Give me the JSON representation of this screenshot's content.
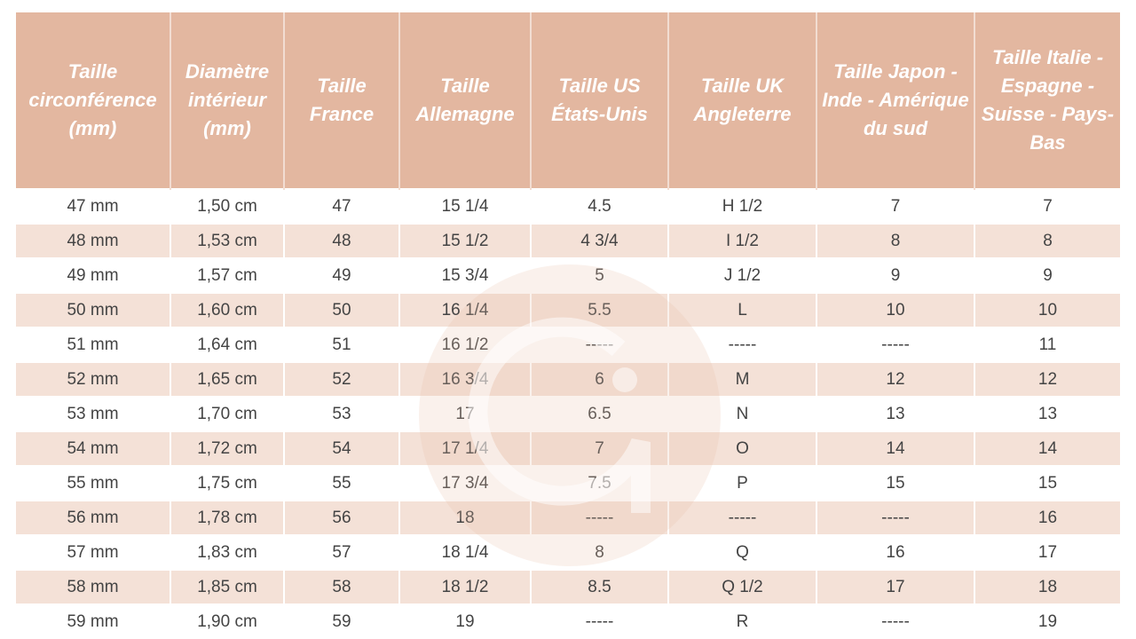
{
  "colors": {
    "header": "#e3b7a0",
    "alt_row": "#f4e1d7"
  },
  "watermark": {
    "icon": "g-logo-watermark",
    "text": "G"
  },
  "headers": [
    "Taille circonférence (mm)",
    "Diamètre intérieur (mm)",
    "Taille France",
    "Taille Allemagne",
    "Taille US États-Unis",
    "Taille UK Angleterre",
    "Taille Japon - Inde - Amérique du sud",
    "Taille Italie - Espagne - Suisse - Pays-Bas"
  ],
  "rows": [
    [
      "47 mm",
      "1,50 cm",
      "47",
      "15 1/4",
      "4.5",
      "H 1/2",
      "7",
      "7"
    ],
    [
      "48 mm",
      "1,53 cm",
      "48",
      "15 1/2",
      "4 3/4",
      "I 1/2",
      "8",
      "8"
    ],
    [
      "49 mm",
      "1,57 cm",
      "49",
      "15 3/4",
      "5",
      "J 1/2",
      "9",
      "9"
    ],
    [
      "50 mm",
      "1,60 cm",
      "50",
      "16 1/4",
      "5.5",
      "L",
      "10",
      "10"
    ],
    [
      "51 mm",
      "1,64 cm",
      "51",
      "16 1/2",
      "-----",
      "-----",
      "-----",
      "11"
    ],
    [
      "52 mm",
      "1,65 cm",
      "52",
      "16 3/4",
      "6",
      "M",
      "12",
      "12"
    ],
    [
      "53 mm",
      "1,70 cm",
      "53",
      "17",
      "6.5",
      "N",
      "13",
      "13"
    ],
    [
      "54 mm",
      "1,72 cm",
      "54",
      "17 1/4",
      "7",
      "O",
      "14",
      "14"
    ],
    [
      "55 mm",
      "1,75 cm",
      "55",
      "17 3/4",
      "7.5",
      "P",
      "15",
      "15"
    ],
    [
      "56 mm",
      "1,78 cm",
      "56",
      "18",
      "-----",
      "-----",
      "-----",
      "16"
    ],
    [
      "57 mm",
      "1,83 cm",
      "57",
      "18 1/4",
      "8",
      "Q",
      "16",
      "17"
    ],
    [
      "58 mm",
      "1,85 cm",
      "58",
      "18 1/2",
      "8.5",
      "Q 1/2",
      "17",
      "18"
    ],
    [
      "59 mm",
      "1,90 cm",
      "59",
      "19",
      "-----",
      "R",
      "-----",
      "19"
    ]
  ]
}
